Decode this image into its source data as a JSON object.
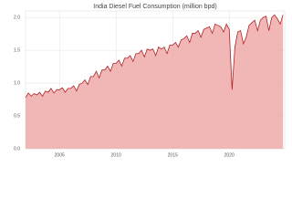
{
  "chart_data": {
    "type": "area",
    "title": "India Diesel Fuel Consumption  (million bpd)",
    "x": [
      2002,
      2002.25,
      2002.5,
      2002.75,
      2003,
      2003.25,
      2003.5,
      2003.75,
      2004,
      2004.25,
      2004.5,
      2004.75,
      2005,
      2005.25,
      2005.5,
      2005.75,
      2006,
      2006.25,
      2006.5,
      2006.75,
      2007,
      2007.25,
      2007.5,
      2007.75,
      2008,
      2008.25,
      2008.5,
      2008.75,
      2009,
      2009.25,
      2009.5,
      2009.75,
      2010,
      2010.25,
      2010.5,
      2010.75,
      2011,
      2011.25,
      2011.5,
      2011.75,
      2012,
      2012.25,
      2012.5,
      2012.75,
      2013,
      2013.25,
      2013.5,
      2013.75,
      2014,
      2014.25,
      2014.5,
      2014.75,
      2015,
      2015.25,
      2015.5,
      2015.75,
      2016,
      2016.25,
      2016.5,
      2016.75,
      2017,
      2017.25,
      2017.5,
      2017.75,
      2018,
      2018.25,
      2018.5,
      2018.75,
      2019,
      2019.25,
      2019.5,
      2019.75,
      2020,
      2020.25,
      2020.5,
      2020.75,
      2021,
      2021.25,
      2021.5,
      2021.75,
      2022,
      2022.25,
      2022.5,
      2022.75,
      2023,
      2023.25,
      2023.5,
      2023.75,
      2024,
      2024.25,
      2024.5,
      2024.75
    ],
    "values": [
      0.78,
      0.85,
      0.8,
      0.84,
      0.82,
      0.86,
      0.8,
      0.88,
      0.86,
      0.92,
      0.85,
      0.9,
      0.9,
      0.93,
      0.86,
      0.92,
      0.92,
      0.96,
      0.88,
      0.98,
      1.0,
      1.05,
      0.98,
      1.1,
      1.1,
      1.18,
      1.08,
      1.2,
      1.2,
      1.26,
      1.18,
      1.3,
      1.3,
      1.35,
      1.26,
      1.38,
      1.38,
      1.42,
      1.33,
      1.45,
      1.45,
      1.5,
      1.4,
      1.52,
      1.5,
      1.52,
      1.42,
      1.55,
      1.52,
      1.55,
      1.45,
      1.58,
      1.58,
      1.62,
      1.55,
      1.66,
      1.68,
      1.72,
      1.62,
      1.76,
      1.76,
      1.8,
      1.7,
      1.82,
      1.84,
      1.86,
      1.76,
      1.9,
      1.88,
      1.86,
      1.78,
      1.9,
      1.82,
      0.9,
      1.55,
      1.78,
      1.8,
      1.6,
      1.7,
      1.88,
      1.92,
      1.96,
      1.8,
      1.96,
      2.0,
      2.02,
      1.8,
      2.0,
      2.04,
      1.98,
      1.9,
      2.04
    ],
    "color": "#b22222",
    "fill": "#eeaaaa",
    "xlim": [
      2002,
      2024.9
    ],
    "xticks": [
      2005,
      2010,
      2015,
      2020
    ],
    "ylim": [
      0,
      2.1
    ],
    "yticks": [
      {
        "value": 0,
        "label": "0.0"
      },
      {
        "value": 0.5,
        "label": "0.5"
      },
      {
        "value": 1,
        "label": "1.0"
      },
      {
        "value": 1.5,
        "label": "1.5"
      },
      {
        "value": 2,
        "label": "2.0"
      }
    ],
    "grid": true
  }
}
